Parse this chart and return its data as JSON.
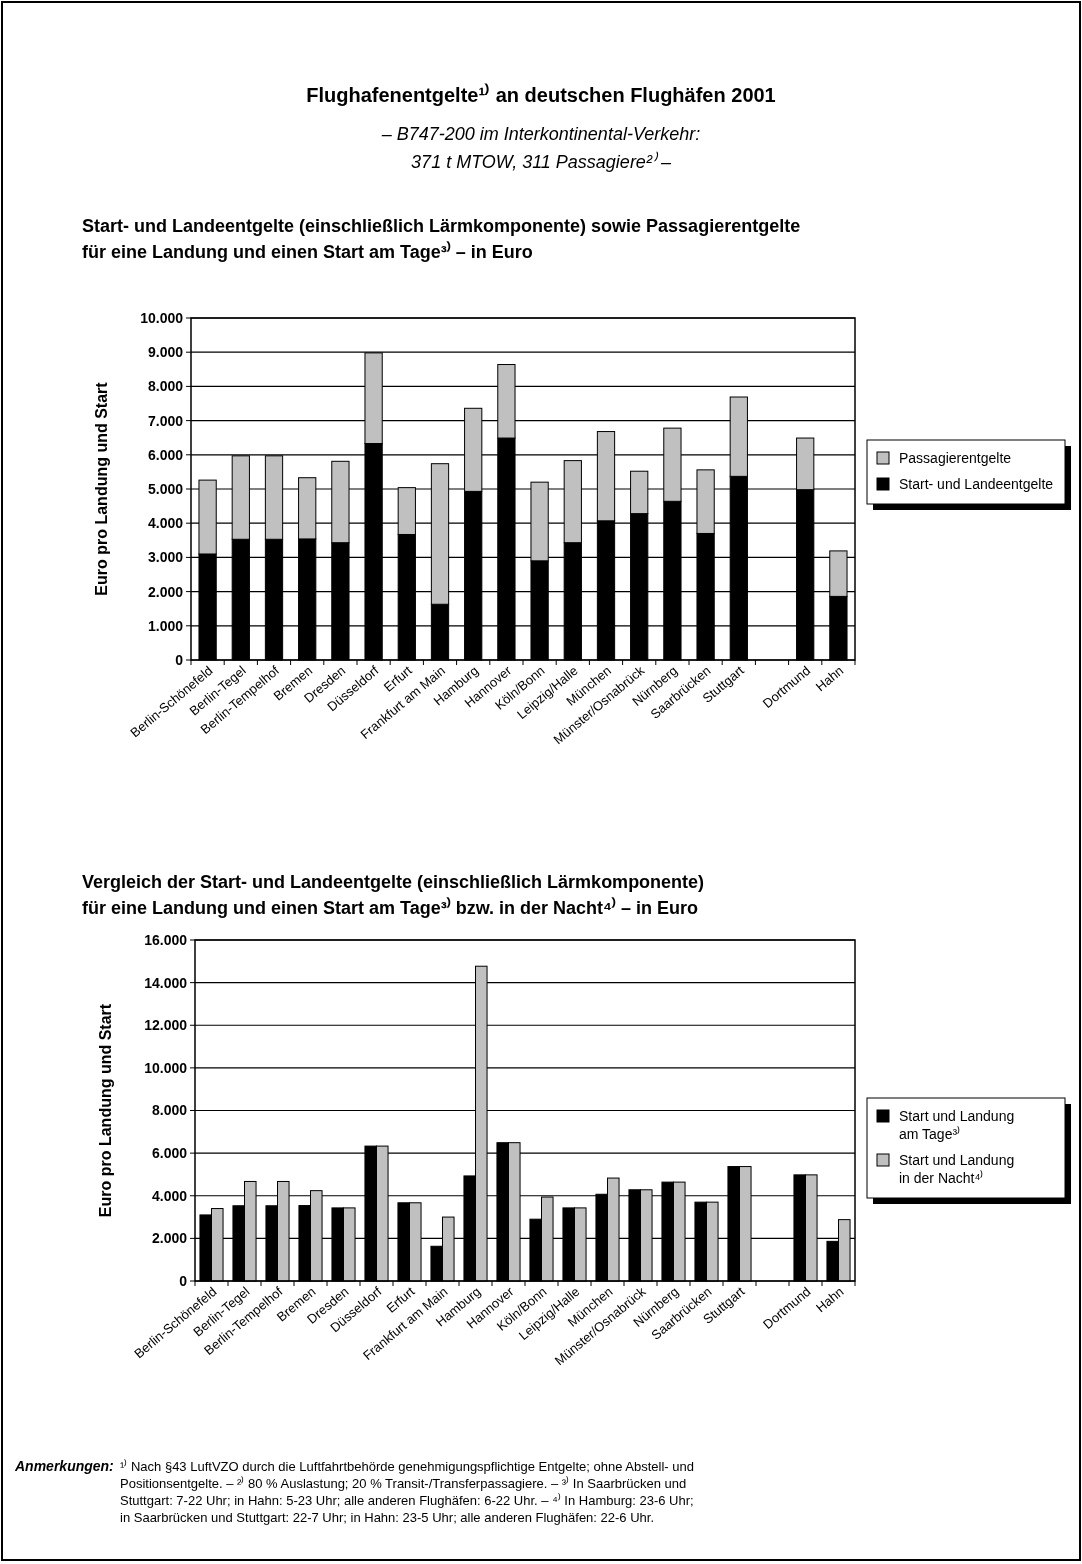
{
  "chart_data": [
    {
      "type": "bar",
      "title": "Flughafenentgelte¹⁾ an deutschen Flughäfen 2001",
      "subtitle": "– B747-200 im Interkontinental-Verkehr:\n371 t MTOW, 311 Passagiere²⁾ –",
      "annotations": [
        "Start- und Landeentgelte (einschließlich Lärmkomponente) sowie Passagierentgelte\nfür eine Landung und einen Start am Tage³⁾ – in Euro"
      ],
      "ylabel": "Euro pro Landung und Start",
      "categories": [
        "Berlin-Schönefeld",
        "Berlin-Tegel",
        "Berlin-Tempelhof",
        "Bremen",
        "Dresden",
        "Düsseldorf",
        "Erfurt",
        "Frankfurt am Main",
        "Hamburg",
        "Hannover",
        "Köln/Bonn",
        "Leipzig/Halle",
        "München",
        "Münster/Osnabrück",
        "Nürnberg",
        "Saarbrücken",
        "Stuttgart",
        null,
        "Dortmund",
        "Hahn"
      ],
      "stacked": true,
      "series": [
        {
          "name": "Start- und Landeentgelte",
          "color": "#000000",
          "values": [
            3100,
            3530,
            3530,
            3540,
            3430,
            6330,
            3670,
            1630,
            4930,
            6490,
            2900,
            3430,
            4070,
            4280,
            4640,
            3700,
            5370,
            null,
            4980,
            1860
          ]
        },
        {
          "name": "Passagierentgelte",
          "color": "#c0c0c0",
          "values": [
            2160,
            2440,
            2440,
            1790,
            2380,
            2650,
            1370,
            4110,
            2430,
            2150,
            2300,
            2400,
            2610,
            1240,
            2140,
            1860,
            2320,
            null,
            1510,
            1330
          ]
        }
      ],
      "ylim": [
        0,
        10000
      ],
      "yticks": [
        0,
        {
          "value": 1000,
          "label": "1.000"
        },
        {
          "value": 2000,
          "label": "2.000"
        },
        {
          "value": 3000,
          "label": "3.000"
        },
        {
          "value": 4000,
          "label": "4.000"
        },
        {
          "value": 5000,
          "label": "5.000"
        },
        {
          "value": 6000,
          "label": "6.000"
        },
        {
          "value": 7000,
          "label": "7.000"
        },
        {
          "value": 8000,
          "label": "8.000"
        },
        {
          "value": 9000,
          "label": "9.000"
        },
        {
          "value": 10000,
          "label": "10.000"
        }
      ],
      "grid": "y",
      "legend": "right"
    },
    {
      "type": "bar",
      "title": "Vergleich der Start- und Landeentgelte (einschließlich Lärmkomponente)\nfür eine Landung und einen Start am Tage³⁾ bzw. in der Nacht⁴⁾ – in Euro",
      "ylabel": "Euro pro Landung und Start",
      "annotations": [
        "Anmerkungen:",
        "¹⁾ Nach §43 LuftVZO durch die Luftfahrtbehörde genehmigungspflichtige Entgelte; ohne Abstell- und\nPositionsentgelte. – ²⁾ 80 % Auslastung; 20 % Transit-/Transferpassagiere. – ³⁾ In Saarbrücken und\nStuttgart: 7-22 Uhr; in Hahn: 5-23 Uhr; alle anderen Flughäfen: 6-22 Uhr. – ⁴⁾ In Hamburg: 23-6 Uhr;\nin Saarbrücken und Stuttgart: 22-7 Uhr; in Hahn: 23-5 Uhr; alle anderen Flughäfen: 22-6 Uhr."
      ],
      "categories": [
        "Berlin-Schönefeld",
        "Berlin-Tegel",
        "Berlin-Tempelhof",
        "Bremen",
        "Dresden",
        "Düsseldorf",
        "Erfurt",
        "Frankfurt am Main",
        "Hamburg",
        "Hannover",
        "Köln/Bonn",
        "Leipzig/Halle",
        "München",
        "Münster/Osnabrück",
        "Nürnberg",
        "Saarbrücken",
        "Stuttgart",
        null,
        "Dortmund",
        "Hahn"
      ],
      "series": [
        {
          "name": "Start und Landung am Tage³⁾",
          "color": "#000000",
          "values": [
            3100,
            3530,
            3530,
            3540,
            3430,
            6330,
            3670,
            1630,
            4930,
            6490,
            2900,
            3430,
            4070,
            4280,
            4640,
            3700,
            5370,
            null,
            4980,
            1860
          ]
        },
        {
          "name": "Start und Landung in der Nacht⁴⁾",
          "color": "#c0c0c0",
          "values": [
            3400,
            4670,
            4670,
            4240,
            3430,
            6330,
            3670,
            3000,
            14770,
            6490,
            3940,
            3430,
            4830,
            4280,
            4640,
            3700,
            5370,
            null,
            4980,
            2880
          ]
        }
      ],
      "ylim": [
        0,
        16000
      ],
      "yticks": [
        0,
        {
          "value": 2000,
          "label": "2.000"
        },
        {
          "value": 4000,
          "label": "4.000"
        },
        {
          "value": 6000,
          "label": "6.000"
        },
        {
          "value": 8000,
          "label": "8.000"
        },
        {
          "value": 10000,
          "label": "10.000"
        },
        {
          "value": 12000,
          "label": "12.000"
        },
        {
          "value": 14000,
          "label": "14.000"
        },
        {
          "value": 16000,
          "label": "16.000"
        }
      ],
      "grid": "y",
      "legend": "right"
    }
  ]
}
